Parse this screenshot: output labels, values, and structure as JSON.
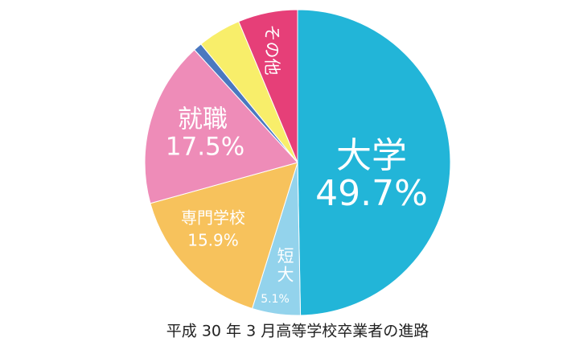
{
  "chart_data": {
    "type": "pie",
    "title": "平成 30 年 3 月高等学校卒業者の進路",
    "categories": [
      "大学",
      "短大",
      "専門学校",
      "就職",
      null,
      null,
      "その他"
    ],
    "values": [
      49.7,
      5.1,
      15.9,
      17.5,
      0.9,
      4.6,
      6.3
    ],
    "value_labels": [
      "49.7%",
      "5.1%",
      "15.9%",
      "17.5%",
      null,
      null,
      null
    ],
    "colors": [
      "#22b5d8",
      "#93d3ec",
      "#f7c25c",
      "#ee8cb8",
      "#4a78c0",
      "#f8ee6a",
      "#e63f78"
    ]
  }
}
